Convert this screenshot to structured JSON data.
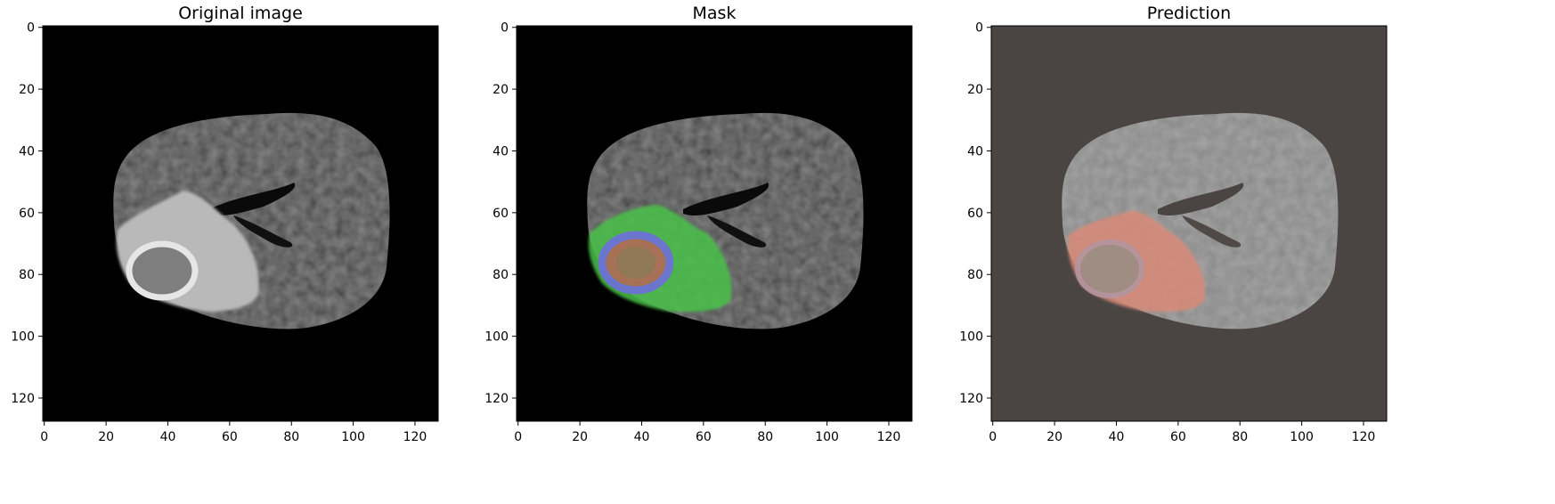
{
  "panels": [
    {
      "id": "original",
      "title": "Original image",
      "background": "#000000",
      "overlay": "none"
    },
    {
      "id": "mask",
      "title": "Mask",
      "background": "#000000",
      "overlay": "ground-truth-mask",
      "overlay_colors": {
        "edema": "#49c24a",
        "enhancing": "#6f6fdc",
        "core": "#b06a56"
      }
    },
    {
      "id": "prediction",
      "title": "Prediction",
      "background": "#4a4543",
      "overlay": "predicted-mask",
      "overlay_colors": {
        "tumor": "#d98a78",
        "core": "#b495a0"
      }
    }
  ],
  "axis": {
    "x_ticks": [
      "0",
      "20",
      "40",
      "60",
      "80",
      "100",
      "120"
    ],
    "y_ticks": [
      "0",
      "20",
      "40",
      "60",
      "80",
      "100",
      "120"
    ],
    "range": [
      0,
      127
    ]
  },
  "colors": {
    "brain_gray": "#4a4a4a",
    "brain_light": "#8d8d8d",
    "ventricle": "#0d0d0d"
  }
}
